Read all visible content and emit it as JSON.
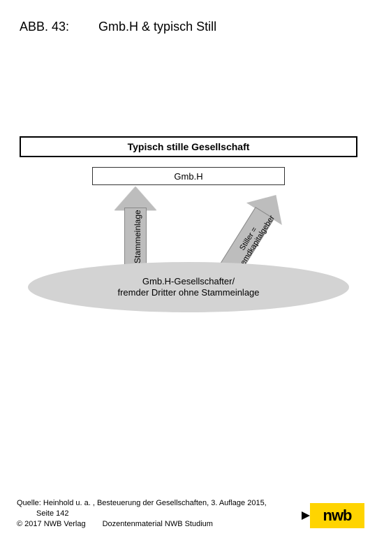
{
  "header": {
    "figure_label": "ABB. 43:",
    "title": "Gmb.H & typisch Still"
  },
  "diagram": {
    "box_top": {
      "text": "Typisch stille Gesellschaft",
      "bg": "#ffffff",
      "border": "#000000",
      "font_weight": "bold",
      "font_size": 14
    },
    "box_gmbh": {
      "text": "Gmb.H",
      "bg": "#ffffff",
      "border": "#333333",
      "font_size": 13
    },
    "ellipse": {
      "line1": "Gmb.H-Gesellschafter/",
      "line2": "fremder Dritter ohne Stammeinlage",
      "fill": "#d3d3d3",
      "font_size": 13
    },
    "arrow_stammeinlage": {
      "label": "Stammeinlage",
      "fill": "#bdbdbd",
      "border": "#888888",
      "direction": "up"
    },
    "arrow_stiller": {
      "label_line1": "Stiller =",
      "label_line2": "Fremdkapitalgeber",
      "fill": "#bdbdbd",
      "border": "#888888",
      "rotation_deg": 32
    },
    "small_arrow": {
      "color": "#444444",
      "direction": "left"
    }
  },
  "footer": {
    "source": "Quelle: Heinhold u. a. , Besteuerung der Gesellschaften, 3. Auflage 2015,",
    "page": "Seite 142",
    "copyright": "© 2017 NWB Verlag",
    "material": "Dozentenmaterial NWB Studium"
  },
  "logo": {
    "text": "nwb",
    "bg": "#ffd400",
    "text_color": "#000000"
  },
  "colors": {
    "page_bg": "#ffffff"
  }
}
